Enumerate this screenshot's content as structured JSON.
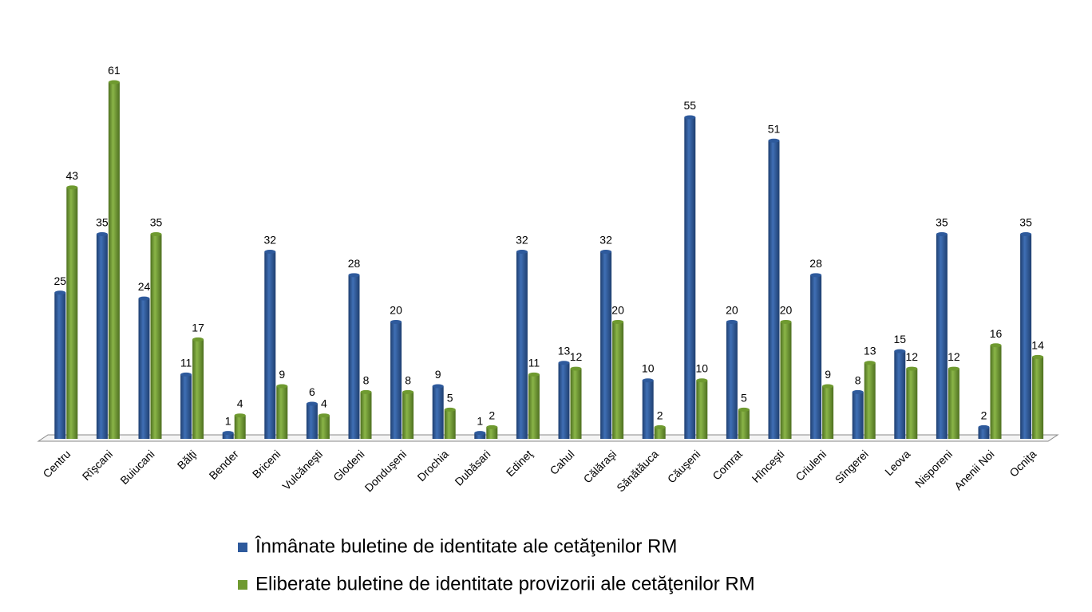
{
  "chart_data": {
    "type": "bar",
    "categories": [
      "Centru",
      "Rîşcani",
      "Buiucani",
      "Bălţi",
      "Bender",
      "Briceni",
      "Vulcăneşti",
      "Glodeni",
      "Donduşeni",
      "Drochia",
      "Dubăsari",
      "Edineţ",
      "Cahul",
      "Călăraşi",
      "Sănătăuca",
      "Căuşeni",
      "Comrat",
      "Hînceşti",
      "Criuleni",
      "Sîngerei",
      "Leova",
      "Nisporeni",
      "Anenii Noi",
      "Ocniţa"
    ],
    "series": [
      {
        "name": "Înmânate buletine de identitate ale cetăţenilor RM",
        "color": "#2e5a9c",
        "values": [
          25,
          35,
          24,
          11,
          1,
          32,
          6,
          28,
          20,
          9,
          1,
          32,
          13,
          32,
          10,
          55,
          20,
          51,
          28,
          8,
          15,
          35,
          2,
          35
        ]
      },
      {
        "name": "Eliberate buletine de identitate provizorii ale cetăţenilor RM",
        "color": "#6f9a30",
        "values": [
          43,
          61,
          35,
          17,
          4,
          9,
          4,
          8,
          8,
          5,
          2,
          11,
          12,
          20,
          2,
          10,
          5,
          20,
          9,
          13,
          12,
          12,
          16,
          14
        ]
      }
    ]
  }
}
